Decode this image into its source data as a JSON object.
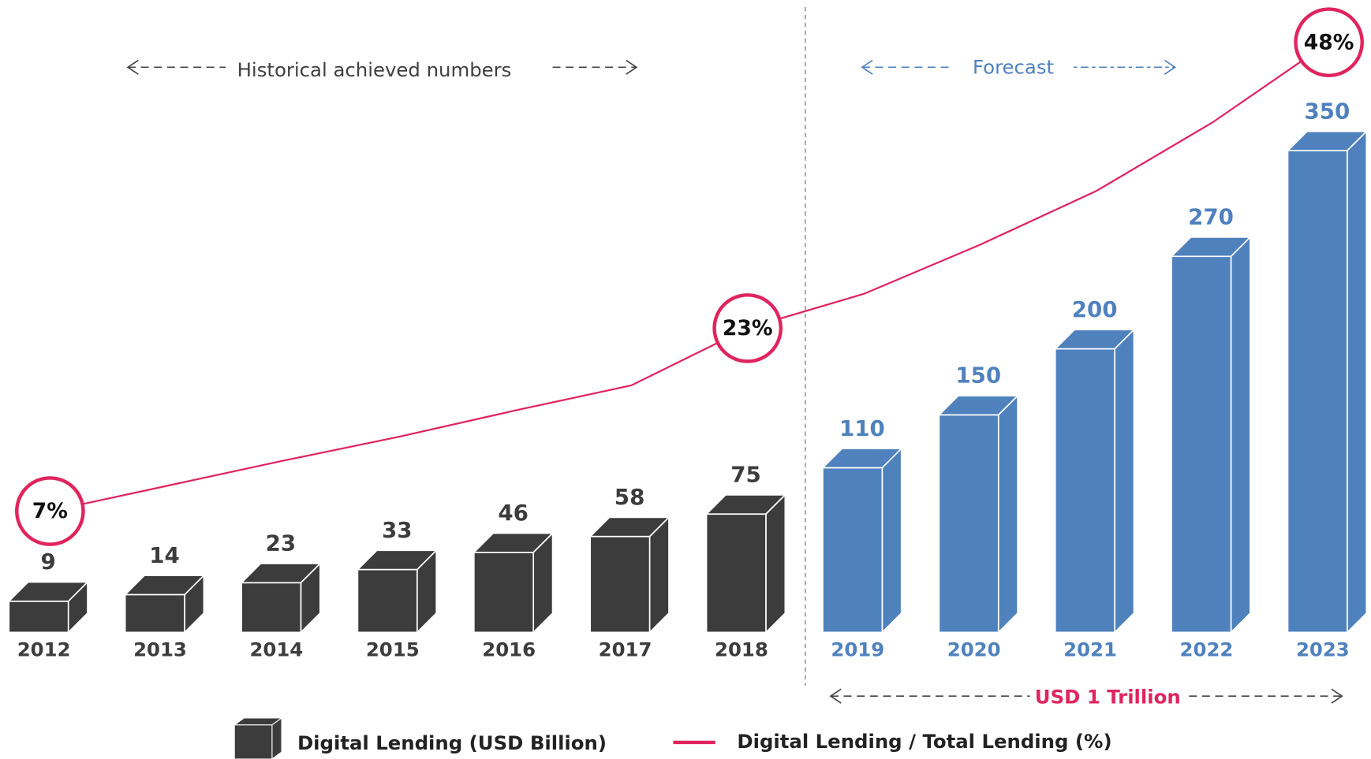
{
  "chart_data": {
    "type": "bar",
    "categories": [
      "2012",
      "2013",
      "2014",
      "2015",
      "2016",
      "2017",
      "2018",
      "2019",
      "2020",
      "2021",
      "2022",
      "2023"
    ],
    "series": [
      {
        "name": "Digital Lending (USD Billion)",
        "type": "bar",
        "color": "#3c3c3c",
        "colors": [
          "#3c3c3c",
          "#3c3c3c",
          "#3c3c3c",
          "#3c3c3c",
          "#3c3c3c",
          "#3c3c3c",
          "#3c3c3c",
          "#4f81bd",
          "#4f81bd",
          "#4f81bd",
          "#4f81bd",
          "#4f81bd"
        ],
        "values": [
          9,
          14,
          23,
          33,
          46,
          58,
          75,
          110,
          150,
          200,
          270,
          350
        ]
      },
      {
        "name": "Digital Lending / Total Lending (%)",
        "type": "line",
        "axis": "y2",
        "color": "#e0245e",
        "values": [
          7,
          9.2,
          11.4,
          13.5,
          15.8,
          18,
          23,
          26,
          30.3,
          35,
          41,
          48
        ],
        "value_labels": [
          "7%",
          null,
          null,
          null,
          null,
          null,
          "23%",
          null,
          null,
          null,
          null,
          "48%"
        ]
      }
    ],
    "ylim": [
      -14.5,
      464
    ],
    "y2lim": [
      -3.6,
      51.7
    ],
    "annotations": {
      "historical": "Historical achieved numbers",
      "forecast": "Forecast",
      "total": "USD 1 Trillion"
    }
  }
}
